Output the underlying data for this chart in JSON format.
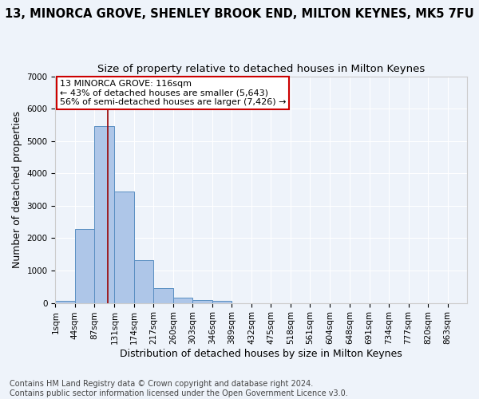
{
  "title1": "13, MINORCA GROVE, SHENLEY BROOK END, MILTON KEYNES, MK5 7FU",
  "title2": "Size of property relative to detached houses in Milton Keynes",
  "xlabel": "Distribution of detached houses by size in Milton Keynes",
  "ylabel": "Number of detached properties",
  "annotation_line1": "13 MINORCA GROVE: 116sqm",
  "annotation_line2": "← 43% of detached houses are smaller (5,643)",
  "annotation_line3": "56% of semi-detached houses are larger (7,426) →",
  "footer1": "Contains HM Land Registry data © Crown copyright and database right 2024.",
  "footer2": "Contains public sector information licensed under the Open Government Licence v3.0.",
  "bar_color": "#aec6e8",
  "bar_edge_color": "#5a8fc2",
  "red_line_x": 116,
  "categories": [
    "1sqm",
    "44sqm",
    "87sqm",
    "131sqm",
    "174sqm",
    "217sqm",
    "260sqm",
    "303sqm",
    "346sqm",
    "389sqm",
    "432sqm",
    "475sqm",
    "518sqm",
    "561sqm",
    "604sqm",
    "648sqm",
    "691sqm",
    "734sqm",
    "777sqm",
    "820sqm",
    "863sqm"
  ],
  "bin_edges": [
    1,
    44,
    87,
    131,
    174,
    217,
    260,
    303,
    346,
    389,
    432,
    475,
    518,
    561,
    604,
    648,
    691,
    734,
    777,
    820,
    863,
    906
  ],
  "values": [
    75,
    2270,
    5470,
    3440,
    1310,
    460,
    155,
    80,
    55,
    0,
    0,
    0,
    0,
    0,
    0,
    0,
    0,
    0,
    0,
    0,
    0
  ],
  "ylim": [
    0,
    7000
  ],
  "yticks": [
    0,
    1000,
    2000,
    3000,
    4000,
    5000,
    6000,
    7000
  ],
  "background_color": "#eef3fa",
  "grid_color": "#ffffff",
  "annotation_box_color": "#ffffff",
  "annotation_box_edge_color": "#cc0000",
  "title1_fontsize": 10.5,
  "title2_fontsize": 9.5,
  "axis_label_fontsize": 9,
  "tick_fontsize": 7.5,
  "footer_fontsize": 7.0
}
